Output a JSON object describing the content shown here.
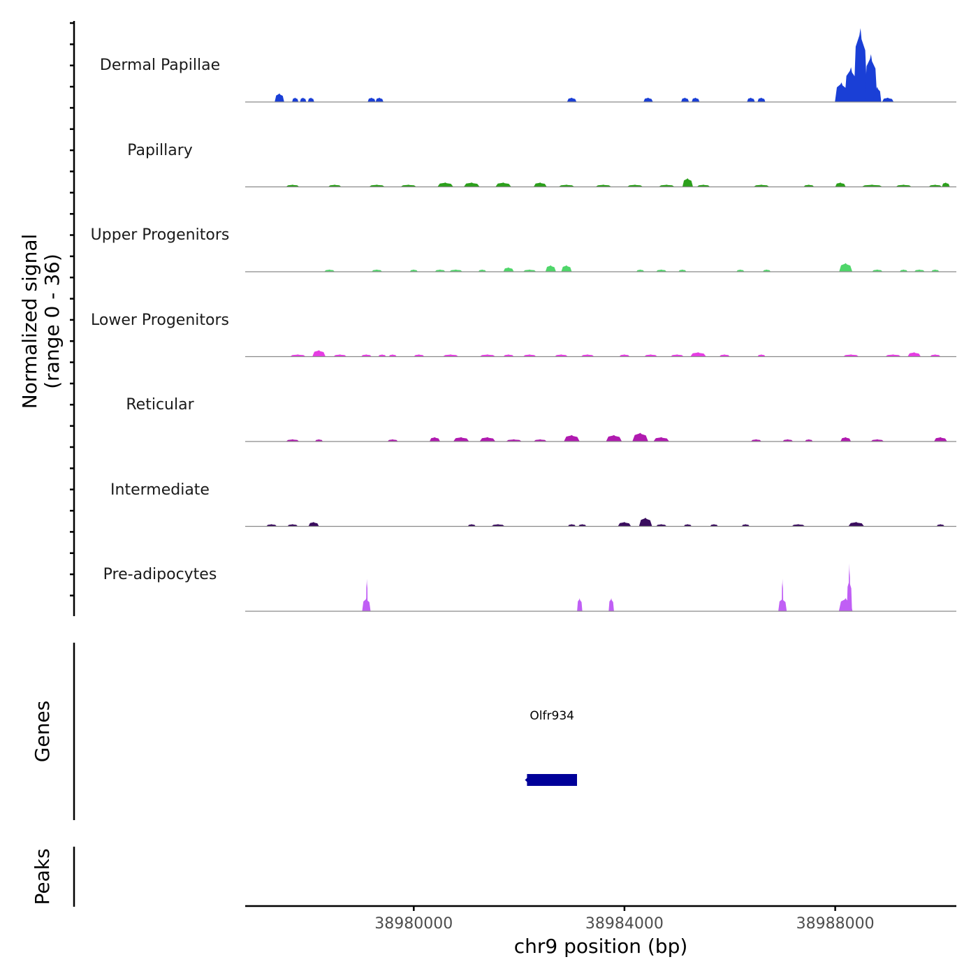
{
  "chart_data": {
    "type": "coverage-tracks",
    "chromosome": "chr9",
    "x_range": [
      38976800,
      38990300
    ],
    "xlabel": "chr9 position (bp)",
    "x_ticks": [
      {
        "value": 38980000,
        "label": "38980000"
      },
      {
        "value": 38984000,
        "label": "38984000"
      },
      {
        "value": 38988000,
        "label": "38988000"
      }
    ],
    "ylabel_line1": "Normalized signal",
    "ylabel_line2": "(range 0 - 36)",
    "y_range": [
      0,
      36
    ],
    "tracks": [
      {
        "name": "Dermal Papillae",
        "color": "#1a3fd6",
        "peaks": [
          {
            "center": 38977450,
            "width": 180,
            "height": 4
          },
          {
            "center": 38977750,
            "width": 120,
            "height": 2
          },
          {
            "center": 38977900,
            "width": 120,
            "height": 2
          },
          {
            "center": 38978050,
            "width": 120,
            "height": 2
          },
          {
            "center": 38979200,
            "width": 150,
            "height": 2
          },
          {
            "center": 38979350,
            "width": 150,
            "height": 2
          },
          {
            "center": 38983000,
            "width": 180,
            "height": 2
          },
          {
            "center": 38984450,
            "width": 180,
            "height": 2
          },
          {
            "center": 38985150,
            "width": 150,
            "height": 2
          },
          {
            "center": 38985350,
            "width": 150,
            "height": 2
          },
          {
            "center": 38986400,
            "width": 150,
            "height": 2
          },
          {
            "center": 38986600,
            "width": 150,
            "height": 2
          },
          {
            "center": 38988120,
            "width": 250,
            "height": 9
          },
          {
            "center": 38988300,
            "width": 250,
            "height": 16
          },
          {
            "center": 38988480,
            "width": 260,
            "height": 34
          },
          {
            "center": 38988680,
            "width": 240,
            "height": 22
          },
          {
            "center": 38988800,
            "width": 150,
            "height": 7
          },
          {
            "center": 38989000,
            "width": 220,
            "height": 2
          }
        ]
      },
      {
        "name": "Papillary",
        "color": "#2ca01c",
        "peaks": [
          {
            "center": 38977700,
            "width": 250,
            "height": 1
          },
          {
            "center": 38978500,
            "width": 250,
            "height": 1
          },
          {
            "center": 38979300,
            "width": 300,
            "height": 1
          },
          {
            "center": 38979900,
            "width": 300,
            "height": 1
          },
          {
            "center": 38980600,
            "width": 300,
            "height": 2
          },
          {
            "center": 38981100,
            "width": 300,
            "height": 2
          },
          {
            "center": 38981700,
            "width": 300,
            "height": 2
          },
          {
            "center": 38982400,
            "width": 250,
            "height": 2
          },
          {
            "center": 38982900,
            "width": 300,
            "height": 1
          },
          {
            "center": 38983600,
            "width": 300,
            "height": 1
          },
          {
            "center": 38984200,
            "width": 300,
            "height": 1
          },
          {
            "center": 38984800,
            "width": 300,
            "height": 1
          },
          {
            "center": 38985200,
            "width": 200,
            "height": 4
          },
          {
            "center": 38985500,
            "width": 250,
            "height": 1
          },
          {
            "center": 38986600,
            "width": 300,
            "height": 1
          },
          {
            "center": 38987500,
            "width": 200,
            "height": 1
          },
          {
            "center": 38988100,
            "width": 200,
            "height": 2
          },
          {
            "center": 38988700,
            "width": 400,
            "height": 1
          },
          {
            "center": 38989300,
            "width": 300,
            "height": 1
          },
          {
            "center": 38989900,
            "width": 250,
            "height": 1
          },
          {
            "center": 38990100,
            "width": 150,
            "height": 2
          }
        ]
      },
      {
        "name": "Upper Progenitors",
        "color": "#4fd66a",
        "peaks": [
          {
            "center": 38978400,
            "width": 200,
            "height": 1
          },
          {
            "center": 38979300,
            "width": 200,
            "height": 1
          },
          {
            "center": 38980000,
            "width": 150,
            "height": 1
          },
          {
            "center": 38980500,
            "width": 200,
            "height": 1
          },
          {
            "center": 38980800,
            "width": 250,
            "height": 1
          },
          {
            "center": 38981300,
            "width": 150,
            "height": 1
          },
          {
            "center": 38981800,
            "width": 200,
            "height": 2
          },
          {
            "center": 38982200,
            "width": 250,
            "height": 1
          },
          {
            "center": 38982600,
            "width": 200,
            "height": 3
          },
          {
            "center": 38982900,
            "width": 200,
            "height": 3
          },
          {
            "center": 38984300,
            "width": 150,
            "height": 1
          },
          {
            "center": 38984700,
            "width": 200,
            "height": 1
          },
          {
            "center": 38985100,
            "width": 150,
            "height": 1
          },
          {
            "center": 38986200,
            "width": 150,
            "height": 1
          },
          {
            "center": 38986700,
            "width": 150,
            "height": 1
          },
          {
            "center": 38988200,
            "width": 250,
            "height": 4
          },
          {
            "center": 38988800,
            "width": 200,
            "height": 1
          },
          {
            "center": 38989300,
            "width": 150,
            "height": 1
          },
          {
            "center": 38989600,
            "width": 200,
            "height": 1
          },
          {
            "center": 38989900,
            "width": 150,
            "height": 1
          }
        ]
      },
      {
        "name": "Lower Progenitors",
        "color": "#e63de3",
        "peaks": [
          {
            "center": 38977800,
            "width": 300,
            "height": 1
          },
          {
            "center": 38978200,
            "width": 250,
            "height": 3
          },
          {
            "center": 38978600,
            "width": 250,
            "height": 1
          },
          {
            "center": 38979100,
            "width": 200,
            "height": 1
          },
          {
            "center": 38979400,
            "width": 150,
            "height": 1
          },
          {
            "center": 38979600,
            "width": 150,
            "height": 1
          },
          {
            "center": 38980100,
            "width": 200,
            "height": 1
          },
          {
            "center": 38980700,
            "width": 300,
            "height": 1
          },
          {
            "center": 38981400,
            "width": 300,
            "height": 1
          },
          {
            "center": 38981800,
            "width": 200,
            "height": 1
          },
          {
            "center": 38982200,
            "width": 250,
            "height": 1
          },
          {
            "center": 38982800,
            "width": 250,
            "height": 1
          },
          {
            "center": 38983300,
            "width": 250,
            "height": 1
          },
          {
            "center": 38984000,
            "width": 200,
            "height": 1
          },
          {
            "center": 38984500,
            "width": 250,
            "height": 1
          },
          {
            "center": 38985000,
            "width": 250,
            "height": 1
          },
          {
            "center": 38985400,
            "width": 300,
            "height": 2
          },
          {
            "center": 38985900,
            "width": 200,
            "height": 1
          },
          {
            "center": 38986600,
            "width": 150,
            "height": 1
          },
          {
            "center": 38988300,
            "width": 300,
            "height": 1
          },
          {
            "center": 38989100,
            "width": 300,
            "height": 1
          },
          {
            "center": 38989500,
            "width": 250,
            "height": 2
          },
          {
            "center": 38989900,
            "width": 200,
            "height": 1
          }
        ]
      },
      {
        "name": "Reticular",
        "color": "#b01aaf",
        "peaks": [
          {
            "center": 38977700,
            "width": 250,
            "height": 1
          },
          {
            "center": 38978200,
            "width": 150,
            "height": 1
          },
          {
            "center": 38979600,
            "width": 200,
            "height": 1
          },
          {
            "center": 38980400,
            "width": 200,
            "height": 2
          },
          {
            "center": 38980900,
            "width": 300,
            "height": 2
          },
          {
            "center": 38981400,
            "width": 300,
            "height": 2
          },
          {
            "center": 38981900,
            "width": 300,
            "height": 1
          },
          {
            "center": 38982400,
            "width": 250,
            "height": 1
          },
          {
            "center": 38983000,
            "width": 300,
            "height": 3
          },
          {
            "center": 38983800,
            "width": 300,
            "height": 3
          },
          {
            "center": 38984300,
            "width": 300,
            "height": 4
          },
          {
            "center": 38984700,
            "width": 300,
            "height": 2
          },
          {
            "center": 38986500,
            "width": 200,
            "height": 1
          },
          {
            "center": 38987100,
            "width": 200,
            "height": 1
          },
          {
            "center": 38987500,
            "width": 150,
            "height": 1
          },
          {
            "center": 38988200,
            "width": 200,
            "height": 2
          },
          {
            "center": 38988800,
            "width": 250,
            "height": 1
          },
          {
            "center": 38990000,
            "width": 250,
            "height": 2
          }
        ]
      },
      {
        "name": "Intermediate",
        "color": "#3a0d5e",
        "peaks": [
          {
            "center": 38977300,
            "width": 200,
            "height": 1
          },
          {
            "center": 38977700,
            "width": 200,
            "height": 1
          },
          {
            "center": 38978100,
            "width": 200,
            "height": 2
          },
          {
            "center": 38981100,
            "width": 150,
            "height": 1
          },
          {
            "center": 38981600,
            "width": 250,
            "height": 1
          },
          {
            "center": 38983000,
            "width": 150,
            "height": 1
          },
          {
            "center": 38983200,
            "width": 150,
            "height": 1
          },
          {
            "center": 38984000,
            "width": 250,
            "height": 2
          },
          {
            "center": 38984400,
            "width": 250,
            "height": 4
          },
          {
            "center": 38984700,
            "width": 200,
            "height": 1
          },
          {
            "center": 38985200,
            "width": 150,
            "height": 1
          },
          {
            "center": 38985700,
            "width": 150,
            "height": 1
          },
          {
            "center": 38986300,
            "width": 150,
            "height": 1
          },
          {
            "center": 38987300,
            "width": 250,
            "height": 1
          },
          {
            "center": 38988400,
            "width": 300,
            "height": 2
          },
          {
            "center": 38990000,
            "width": 150,
            "height": 1
          }
        ]
      },
      {
        "name": "Pre-adipocytes",
        "color": "#c05ff5",
        "peaks": [
          {
            "center": 38979100,
            "width": 160,
            "height": 6
          },
          {
            "center": 38979110,
            "width": 30,
            "height": 15
          },
          {
            "center": 38983150,
            "width": 100,
            "height": 6
          },
          {
            "center": 38983750,
            "width": 100,
            "height": 6
          },
          {
            "center": 38987000,
            "width": 160,
            "height": 6
          },
          {
            "center": 38987000,
            "width": 30,
            "height": 15
          },
          {
            "center": 38988200,
            "width": 260,
            "height": 6
          },
          {
            "center": 38988270,
            "width": 100,
            "height": 15
          },
          {
            "center": 38988270,
            "width": 30,
            "height": 22
          }
        ]
      }
    ],
    "genes_panel_label": "Genes",
    "genes": [
      {
        "name": "Olfr934",
        "start": 38982150,
        "end": 38983100,
        "color": "#000099"
      }
    ],
    "peaks_panel_label": "Peaks"
  }
}
